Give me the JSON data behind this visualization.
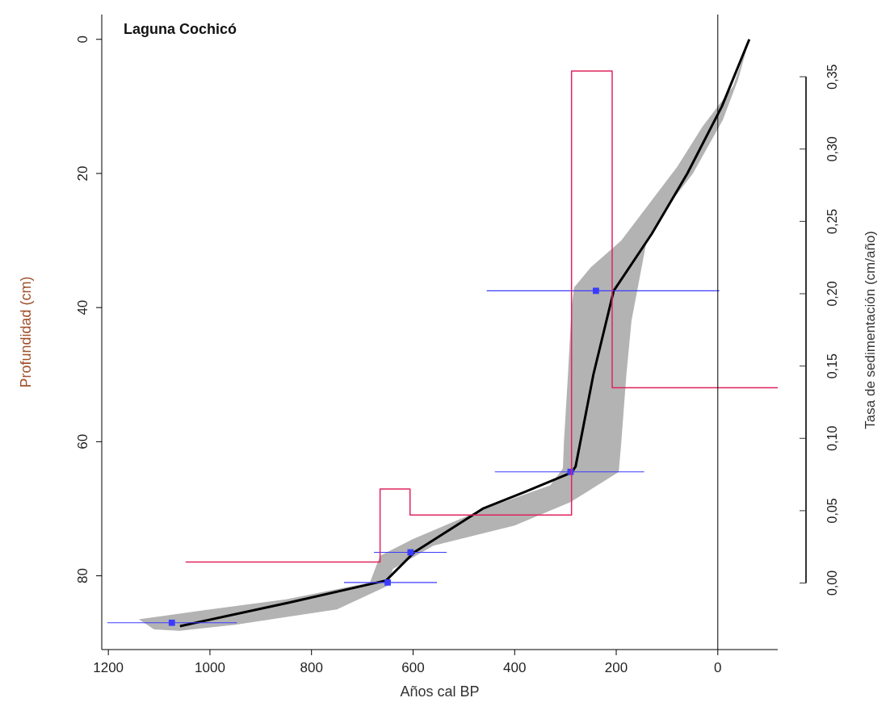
{
  "chart_data": {
    "type": "line",
    "title": "Laguna Cochicó",
    "xlabel": "Años cal BP",
    "ylabel": "Profundidad (cm)",
    "y2label": "Tasa de sedimentación (cm/año)",
    "xlim": [
      1213,
      -118
    ],
    "xticks": [
      1200,
      1000,
      800,
      600,
      400,
      200,
      0
    ],
    "ylim": [
      91,
      -3.7
    ],
    "yticks": [
      0,
      20,
      40,
      60,
      80
    ],
    "y2lim": [
      -0.046,
      0.393
    ],
    "y2ticks": [
      {
        "value": 0,
        "label": "0,00"
      },
      {
        "value": 0.05,
        "label": "0,05"
      },
      {
        "value": 0.1,
        "label": "0,10"
      },
      {
        "value": 0.15,
        "label": "0,15"
      },
      {
        "value": 0.2,
        "label": "0,20"
      },
      {
        "value": 0.25,
        "label": "0,25"
      },
      {
        "value": 0.3,
        "label": "0,30"
      },
      {
        "value": 0.35,
        "label": "0,35"
      }
    ],
    "grid": false,
    "ref_lines": [
      {
        "axis": "x",
        "value": 0,
        "color": "#000000"
      }
    ],
    "series": [
      {
        "type": "area",
        "color": "#b3b3b3",
        "x": [
          -62,
          -30,
          30,
          80,
          140,
          190,
          250,
          283,
          288,
          295,
          303,
          305,
          330,
          460,
          600,
          665,
          685,
          850,
          1000,
          1140,
          1110,
          1060,
          950,
          750,
          650,
          640,
          560,
          400,
          290,
          195,
          190,
          180,
          170,
          160,
          140,
          100,
          49,
          -10,
          -40
        ],
        "values": [
          0,
          7,
          13,
          19,
          25,
          30,
          34,
          37,
          40,
          50,
          60,
          64,
          66.5,
          70,
          74.5,
          77,
          81,
          83.5,
          85,
          86.5,
          88,
          88.2,
          87.3,
          85,
          81.5,
          79,
          75.5,
          72.5,
          69,
          64.5,
          60,
          50,
          42,
          38,
          30,
          25,
          20,
          12,
          6
        ]
      },
      {
        "color": "#000000",
        "x": [
          -62,
          -8,
          60,
          130,
          205,
          245,
          280,
          288,
          380,
          463,
          598,
          653,
          844,
          1059
        ],
        "values": [
          0,
          10,
          20,
          29,
          37.5,
          50,
          63.7,
          64.6,
          67.5,
          70,
          76.5,
          80.7,
          84,
          87.5
        ]
      },
      {
        "type": "scatter",
        "color": "#3b3bff",
        "marker": "square",
        "x": [
          240,
          290,
          605,
          650,
          1075
        ],
        "values": [
          37.5,
          64.5,
          76.5,
          81,
          87
        ],
        "xerrors": [
          [
            -3,
            455
          ],
          [
            145,
            439
          ],
          [
            534,
            677
          ],
          [
            553,
            736
          ],
          [
            947,
            1202
          ]
        ]
      },
      {
        "type": "step",
        "color": "#e0245e",
        "axis": "y2",
        "x": [
          1048,
          665,
          606,
          288,
          208,
          -118
        ],
        "values": [
          0.0145,
          0.065,
          0.047,
          0.354,
          0.135,
          0.135
        ]
      }
    ]
  }
}
